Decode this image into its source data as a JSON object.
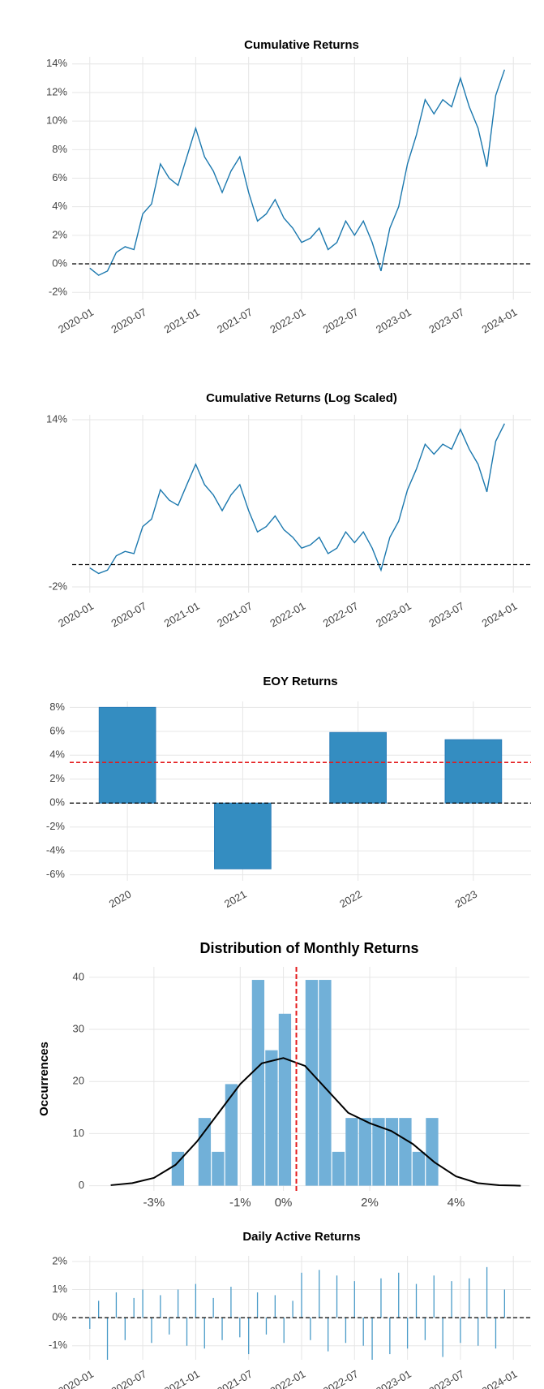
{
  "chart_data": [
    {
      "type": "line",
      "title": "Cumulative Returns",
      "x": [
        "2020-01",
        "2020-02",
        "2020-03",
        "2020-04",
        "2020-05",
        "2020-06",
        "2020-07",
        "2020-08",
        "2020-09",
        "2020-10",
        "2020-11",
        "2020-12",
        "2021-01",
        "2021-02",
        "2021-03",
        "2021-04",
        "2021-05",
        "2021-06",
        "2021-07",
        "2021-08",
        "2021-09",
        "2021-10",
        "2021-11",
        "2021-12",
        "2022-01",
        "2022-02",
        "2022-03",
        "2022-04",
        "2022-05",
        "2022-06",
        "2022-07",
        "2022-08",
        "2022-09",
        "2022-10",
        "2022-11",
        "2022-12",
        "2023-01",
        "2023-02",
        "2023-03",
        "2023-04",
        "2023-05",
        "2023-06",
        "2023-07",
        "2023-08",
        "2023-09",
        "2023-10",
        "2023-11",
        "2023-12"
      ],
      "series": [
        {
          "color": "#1b78ae",
          "values": [
            -0.3,
            -0.8,
            -0.5,
            0.8,
            1.2,
            1.0,
            3.5,
            4.2,
            7.0,
            6.0,
            5.5,
            7.5,
            9.5,
            7.5,
            6.5,
            5.0,
            6.5,
            7.5,
            5.0,
            3.0,
            3.5,
            4.5,
            3.2,
            2.5,
            1.5,
            1.8,
            2.5,
            1.0,
            1.5,
            3.0,
            2.0,
            3.0,
            1.5,
            -0.5,
            2.5,
            4.0,
            7.0,
            9.0,
            11.5,
            10.5,
            11.5,
            11.0,
            13.0,
            11.0,
            9.5,
            6.8,
            11.8,
            13.6
          ]
        }
      ],
      "xlim": [
        "2019-11",
        "2024-03"
      ],
      "xticks": [
        "2020-01",
        "2020-07",
        "2021-01",
        "2021-07",
        "2022-01",
        "2022-07",
        "2023-01",
        "2023-07",
        "2024-01"
      ],
      "ylim": [
        -2.5,
        14.5
      ],
      "yticks": [
        {
          "value": -2,
          "label": "-2%"
        },
        {
          "value": 0,
          "label": "0%"
        },
        {
          "value": 2,
          "label": "2%"
        },
        {
          "value": 4,
          "label": "4%"
        },
        {
          "value": 6,
          "label": "6%"
        },
        {
          "value": 8,
          "label": "8%"
        },
        {
          "value": 10,
          "label": "10%"
        },
        {
          "value": 12,
          "label": "12%"
        },
        {
          "value": 14,
          "label": "14%"
        }
      ],
      "hlines": [
        {
          "value": 0,
          "color": "#000000"
        }
      ],
      "grid": true
    },
    {
      "type": "line",
      "title": "Cumulative Returns (Log Scaled)",
      "log_scale": true,
      "x": [
        "2020-01",
        "2020-02",
        "2020-03",
        "2020-04",
        "2020-05",
        "2020-06",
        "2020-07",
        "2020-08",
        "2020-09",
        "2020-10",
        "2020-11",
        "2020-12",
        "2021-01",
        "2021-02",
        "2021-03",
        "2021-04",
        "2021-05",
        "2021-06",
        "2021-07",
        "2021-08",
        "2021-09",
        "2021-10",
        "2021-11",
        "2021-12",
        "2022-01",
        "2022-02",
        "2022-03",
        "2022-04",
        "2022-05",
        "2022-06",
        "2022-07",
        "2022-08",
        "2022-09",
        "2022-10",
        "2022-11",
        "2022-12",
        "2023-01",
        "2023-02",
        "2023-03",
        "2023-04",
        "2023-05",
        "2023-06",
        "2023-07",
        "2023-08",
        "2023-09",
        "2023-10",
        "2023-11",
        "2023-12"
      ],
      "series": [
        {
          "color": "#1b78ae",
          "values": [
            -0.3,
            -0.8,
            -0.5,
            0.8,
            1.2,
            1.0,
            3.5,
            4.2,
            7.0,
            6.0,
            5.5,
            7.5,
            9.5,
            7.5,
            6.5,
            5.0,
            6.5,
            7.5,
            5.0,
            3.0,
            3.5,
            4.5,
            3.2,
            2.5,
            1.5,
            1.8,
            2.5,
            1.0,
            1.5,
            3.0,
            2.0,
            3.0,
            1.5,
            -0.5,
            2.5,
            4.0,
            7.0,
            9.0,
            11.5,
            10.5,
            11.5,
            11.0,
            13.0,
            11.0,
            9.5,
            6.8,
            11.8,
            13.6
          ]
        }
      ],
      "xlim": [
        "2019-11",
        "2024-03"
      ],
      "xticks": [
        "2020-01",
        "2020-07",
        "2021-01",
        "2021-07",
        "2022-01",
        "2022-07",
        "2023-01",
        "2023-07",
        "2024-01"
      ],
      "ylim": [
        -2.5,
        14.5
      ],
      "yticks": [
        {
          "value": -2,
          "label": "-2%"
        },
        {
          "value": 14,
          "label": "14%"
        }
      ],
      "hlines": [
        {
          "value": 0,
          "color": "#000000"
        }
      ],
      "grid": true
    },
    {
      "type": "bar",
      "title": "EOY Returns",
      "categories": [
        "2020",
        "2021",
        "2022",
        "2023"
      ],
      "values": [
        8.0,
        -5.5,
        5.9,
        5.3
      ],
      "color": "#348dc1",
      "ylim": [
        -6.5,
        8.5
      ],
      "yticks": [
        {
          "value": -6,
          "label": "-6%"
        },
        {
          "value": -4,
          "label": "-4%"
        },
        {
          "value": -2,
          "label": "-2%"
        },
        {
          "value": 0,
          "label": "0%"
        },
        {
          "value": 2,
          "label": "2%"
        },
        {
          "value": 4,
          "label": "4%"
        },
        {
          "value": 6,
          "label": "6%"
        },
        {
          "value": 8,
          "label": "8%"
        }
      ],
      "hlines": [
        {
          "value": 0,
          "color": "#000000"
        },
        {
          "value": 3.4,
          "color": "#e41a1c"
        }
      ],
      "grid": true
    },
    {
      "type": "histogram",
      "title": "Distribution of Monthly Returns",
      "y_label": "Occurrences",
      "bins": [
        -2.6,
        -2.29,
        -1.98,
        -1.67,
        -1.36,
        -1.05,
        -0.74,
        -0.43,
        -0.12,
        0.19,
        0.5,
        0.81,
        1.12,
        1.43,
        1.74,
        2.05,
        2.36,
        2.67,
        2.98,
        3.29,
        3.6
      ],
      "counts": [
        6.5,
        0,
        13,
        6.5,
        19.5,
        0,
        39.5,
        26,
        33,
        0,
        39.5,
        39.5,
        6.5,
        13,
        13,
        13,
        13,
        13,
        6.5,
        13
      ],
      "color": "#71b0d8",
      "kde": {
        "x": [
          -4,
          -3.5,
          -3,
          -2.5,
          -2,
          -1.5,
          -1,
          -0.5,
          0,
          0.5,
          1,
          1.5,
          2,
          2.5,
          3,
          3.5,
          4,
          4.5,
          5,
          5.5
        ],
        "y": [
          0.1,
          0.5,
          1.5,
          4,
          8.5,
          14,
          19.5,
          23.5,
          24.5,
          23,
          18.5,
          14,
          12,
          10.5,
          8,
          4.5,
          1.8,
          0.5,
          0.1,
          0
        ],
        "color": "#000000"
      },
      "vlines": [
        {
          "value": 0.3,
          "color": "#e41a1c"
        }
      ],
      "xlim": [
        -4.5,
        5.7
      ],
      "xticks": [
        {
          "value": -3,
          "label": "-3%"
        },
        {
          "value": -1,
          "label": "-1%"
        },
        {
          "value": 0,
          "label": "0%"
        },
        {
          "value": 2,
          "label": "2%"
        },
        {
          "value": 4,
          "label": "4%"
        }
      ],
      "ylim": [
        -1,
        42
      ],
      "yticks": [
        0,
        10,
        20,
        30,
        40
      ],
      "grid": true
    },
    {
      "type": "spikes",
      "title": "Daily Active Returns",
      "x": [
        "2020-01",
        "2020-02",
        "2020-03",
        "2020-04",
        "2020-05",
        "2020-06",
        "2020-07",
        "2020-08",
        "2020-09",
        "2020-10",
        "2020-11",
        "2020-12",
        "2021-01",
        "2021-02",
        "2021-03",
        "2021-04",
        "2021-05",
        "2021-06",
        "2021-07",
        "2021-08",
        "2021-09",
        "2021-10",
        "2021-11",
        "2021-12",
        "2022-01",
        "2022-02",
        "2022-03",
        "2022-04",
        "2022-05",
        "2022-06",
        "2022-07",
        "2022-08",
        "2022-09",
        "2022-10",
        "2022-11",
        "2022-12",
        "2023-01",
        "2023-02",
        "2023-03",
        "2023-04",
        "2023-05",
        "2023-06",
        "2023-07",
        "2023-08",
        "2023-09",
        "2023-10",
        "2023-11",
        "2023-12"
      ],
      "values": [
        -0.4,
        0.6,
        -1.5,
        0.9,
        -0.8,
        0.7,
        1.0,
        -0.9,
        0.8,
        -0.6,
        1.0,
        -1.0,
        1.2,
        -1.1,
        0.7,
        -0.8,
        1.1,
        -0.7,
        -1.3,
        0.9,
        -0.6,
        0.8,
        -0.9,
        0.6,
        1.6,
        -0.8,
        1.7,
        -1.2,
        1.5,
        -0.9,
        1.3,
        -1.0,
        -1.5,
        1.4,
        -1.3,
        1.6,
        -1.1,
        1.2,
        -0.8,
        1.5,
        -1.4,
        1.3,
        -0.9,
        1.4,
        -1.0,
        1.8,
        -1.1,
        1.0
      ],
      "color": "#4a9bc8",
      "xlim": [
        "2019-11",
        "2024-03"
      ],
      "xticks": [
        "2020-01",
        "2020-07",
        "2021-01",
        "2021-07",
        "2022-01",
        "2022-07",
        "2023-01",
        "2023-07",
        "2024-01"
      ],
      "ylim": [
        -1.5,
        2.2
      ],
      "yticks": [
        {
          "value": -1,
          "label": "-1%"
        },
        {
          "value": 0,
          "label": "0%"
        },
        {
          "value": 1,
          "label": "1%"
        },
        {
          "value": 2,
          "label": "2%"
        }
      ],
      "hlines": [
        {
          "value": 0,
          "color": "#000000"
        }
      ],
      "grid": true
    }
  ]
}
